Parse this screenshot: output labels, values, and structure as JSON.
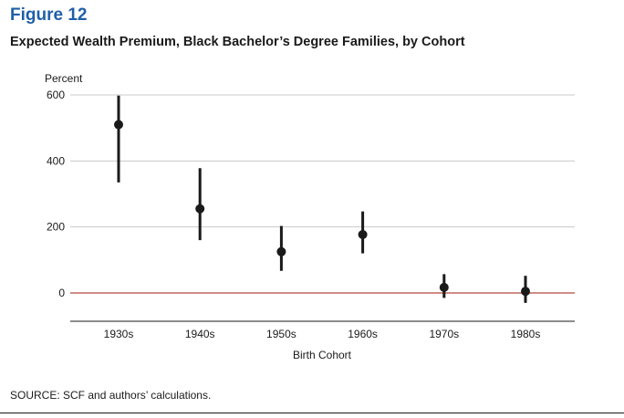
{
  "figure_label": "Figure 12",
  "title": "Expected Wealth Premium, Black Bachelor’s Degree Families, by Cohort",
  "source": "SOURCE: SCF and authors’ calculations.",
  "colors": {
    "figure_label": "#1f5fa8",
    "zero_line": "#b5473f",
    "gridline": "#c8c8c8",
    "marker": "#1a1a1a"
  },
  "chart_data": {
    "type": "scatter",
    "title": "Expected Wealth Premium, Black Bachelor’s Degree Families, by Cohort",
    "xlabel": "Birth Cohort",
    "ylabel": "Percent",
    "ylim": [
      -85,
      600
    ],
    "yticks": [
      0,
      200,
      400,
      600
    ],
    "grid": true,
    "legend": "none",
    "categories": [
      "1930s",
      "1940s",
      "1950s",
      "1960s",
      "1970s",
      "1980s"
    ],
    "series": [
      {
        "values": [
          510,
          255,
          125,
          177,
          17,
          5
        ],
        "lower": [
          335,
          160,
          67,
          120,
          -15,
          -30
        ],
        "upper": [
          598,
          378,
          203,
          247,
          57,
          52
        ]
      }
    ]
  }
}
